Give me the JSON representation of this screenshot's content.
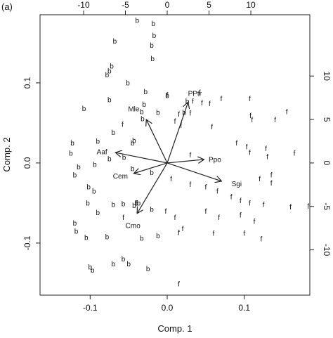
{
  "panel_label": "(a)",
  "chart_data": {
    "type": "biplot",
    "xlabel": "Comp. 1",
    "ylabel": "Comp. 2",
    "xlim": [
      -0.165,
      0.185
    ],
    "ylim": [
      -0.165,
      0.185
    ],
    "xticks": [
      -0.1,
      0.0,
      0.1
    ],
    "xtick_labels": [
      "-0.1",
      "0.0",
      "0.1"
    ],
    "yticks": [
      -0.1,
      0.0,
      0.1
    ],
    "ytick_labels": [
      "-0.1",
      "0.0",
      "0.1"
    ],
    "top_axis": {
      "ticks": [
        -10,
        -5,
        0,
        5,
        10
      ],
      "labels": [
        "-10",
        "-5",
        "0",
        "5",
        "10"
      ]
    },
    "right_axis": {
      "ticks": [
        -10,
        -5,
        0,
        5,
        10
      ],
      "labels": [
        "-10",
        "-5",
        "0",
        "5",
        "10"
      ]
    },
    "loadings": [
      {
        "name": "PPtr",
        "x": 2.5,
        "y": 7.0,
        "label_x": 3.3,
        "label_y": 8.0
      },
      {
        "name": "Mle",
        "x": -2.5,
        "y": 5.0,
        "label_x": -4.0,
        "label_y": 6.2
      },
      {
        "name": "Aaf",
        "x": -6.2,
        "y": 1.2,
        "label_x": -7.8,
        "label_y": 1.3
      },
      {
        "name": "Ppo",
        "x": 4.4,
        "y": 0.4,
        "label_x": 5.7,
        "label_y": 0.4
      },
      {
        "name": "Cem",
        "x": -4.0,
        "y": -1.2,
        "label_x": -5.6,
        "label_y": -1.5
      },
      {
        "name": "Sgi",
        "x": 6.5,
        "y": -2.1,
        "label_x": 8.3,
        "label_y": -2.4
      },
      {
        "name": "Cmo",
        "x": -3.6,
        "y": -5.8,
        "label_x": -4.1,
        "label_y": -7.2
      }
    ],
    "series": [
      {
        "marker": "b",
        "points": [
          [
            -0.039,
            0.178
          ],
          [
            -0.068,
            0.152
          ],
          [
            -0.018,
            0.174
          ],
          [
            -0.017,
            0.159
          ],
          [
            -0.02,
            0.147
          ],
          [
            -0.019,
            0.13
          ],
          [
            -0.072,
            0.121
          ],
          [
            -0.075,
            0.115
          ],
          [
            -0.078,
            0.11
          ],
          [
            -0.051,
            0.1
          ],
          [
            -0.028,
            0.089
          ],
          [
            0.0,
            0.084
          ],
          [
            0.026,
            0.077
          ],
          [
            -0.075,
            0.079
          ],
          [
            -0.108,
            0.068
          ],
          [
            -0.03,
            0.073
          ],
          [
            -0.033,
            0.064
          ],
          [
            -0.012,
            0.063
          ],
          [
            0.022,
            0.063
          ],
          [
            -0.032,
            0.055
          ],
          [
            -0.07,
            0.038
          ],
          [
            -0.043,
            0.028
          ],
          [
            -0.045,
            0.025
          ],
          [
            -0.09,
            0.027
          ],
          [
            -0.123,
            0.025
          ],
          [
            -0.125,
            0.012
          ],
          [
            -0.056,
            0.007
          ],
          [
            -0.075,
            0.005
          ],
          [
            -0.094,
            -0.002
          ],
          [
            -0.115,
            -0.005
          ],
          [
            -0.12,
            -0.015
          ],
          [
            -0.045,
            -0.007
          ],
          [
            -0.02,
            -0.012
          ],
          [
            -0.102,
            -0.03
          ],
          [
            -0.095,
            -0.035
          ],
          [
            -0.103,
            -0.05
          ],
          [
            -0.057,
            -0.051
          ],
          [
            -0.04,
            -0.05
          ],
          [
            -0.037,
            -0.05
          ],
          [
            -0.07,
            -0.052
          ],
          [
            -0.043,
            -0.053
          ],
          [
            -0.12,
            -0.075
          ],
          [
            -0.09,
            -0.062
          ],
          [
            -0.02,
            -0.058
          ],
          [
            -0.118,
            -0.085
          ],
          [
            -0.105,
            -0.093
          ],
          [
            -0.078,
            -0.092
          ],
          [
            -0.033,
            -0.094
          ],
          [
            -0.057,
            -0.12
          ],
          [
            -0.07,
            -0.126
          ],
          [
            -0.1,
            -0.13
          ],
          [
            -0.097,
            -0.134
          ],
          [
            -0.05,
            -0.126
          ],
          [
            -0.025,
            -0.132
          ],
          [
            -0.012,
            -0.091
          ]
        ]
      },
      {
        "marker": "f",
        "points": [
          [
            0.0,
            0.085
          ],
          [
            0.042,
            0.088
          ],
          [
            0.033,
            0.077
          ],
          [
            0.045,
            0.075
          ],
          [
            0.07,
            0.08
          ],
          [
            0.055,
            0.074
          ],
          [
            0.107,
            0.08
          ],
          [
            0.108,
            0.059
          ],
          [
            0.11,
            0.054
          ],
          [
            0.14,
            0.054
          ],
          [
            0.155,
            0.064
          ],
          [
            0.03,
            0.062
          ],
          [
            0.015,
            0.061
          ],
          [
            0.01,
            0.052
          ],
          [
            0.018,
            0.047
          ],
          [
            -0.058,
            0.048
          ],
          [
            0.058,
            0.045
          ],
          [
            0.09,
            0.025
          ],
          [
            0.103,
            0.02
          ],
          [
            0.128,
            0.018
          ],
          [
            0.13,
            0.008
          ],
          [
            0.107,
            0.013
          ],
          [
            0.165,
            0.012
          ],
          [
            0.03,
            0.01
          ],
          [
            0.135,
            -0.015
          ],
          [
            0.12,
            -0.02
          ],
          [
            0.135,
            -0.025
          ],
          [
            0.005,
            -0.02
          ],
          [
            0.03,
            -0.027
          ],
          [
            0.05,
            -0.03
          ],
          [
            0.065,
            -0.035
          ],
          [
            0.083,
            -0.042
          ],
          [
            0.095,
            -0.047
          ],
          [
            0.107,
            -0.05
          ],
          [
            0.125,
            -0.052
          ],
          [
            0.16,
            -0.055
          ],
          [
            0.183,
            -0.054
          ],
          [
            0.05,
            -0.06
          ],
          [
            0.067,
            -0.068
          ],
          [
            0.095,
            -0.065
          ],
          [
            0.06,
            -0.088
          ],
          [
            0.113,
            -0.073
          ],
          [
            0.01,
            -0.068
          ],
          [
            -0.057,
            -0.068
          ],
          [
            -0.04,
            -0.05
          ],
          [
            0.02,
            -0.082
          ],
          [
            0.015,
            -0.087
          ],
          [
            0.1,
            -0.088
          ],
          [
            0.122,
            -0.095
          ],
          [
            0.015,
            -0.151
          ],
          [
            -0.002,
            -0.06
          ]
        ]
      }
    ]
  }
}
